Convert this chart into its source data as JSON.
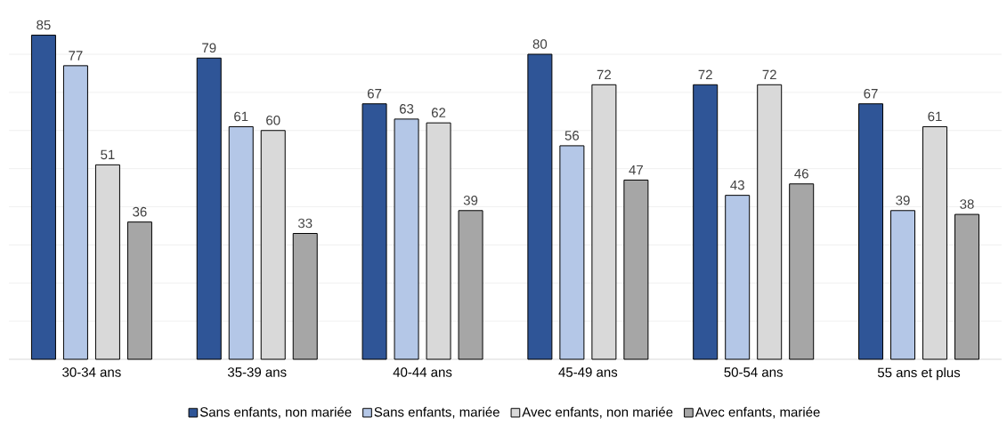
{
  "chart_data": {
    "type": "bar",
    "categories": [
      "30-34 ans",
      "35-39 ans",
      "40-44 ans",
      "45-49 ans",
      "50-54 ans",
      "55 ans et plus"
    ],
    "series": [
      {
        "name": "Sans enfants, non mariée",
        "color": "#2f5597",
        "values": [
          85,
          79,
          67,
          80,
          72,
          67
        ]
      },
      {
        "name": "Sans enfants, mariée",
        "color": "#b4c7e7",
        "values": [
          77,
          61,
          63,
          56,
          43,
          39
        ]
      },
      {
        "name": "Avec enfants, non mariée",
        "color": "#d9d9d9",
        "values": [
          51,
          60,
          62,
          72,
          72,
          61
        ]
      },
      {
        "name": "Avec enfants, mariée",
        "color": "#a6a6a6",
        "values": [
          36,
          33,
          39,
          47,
          46,
          38
        ]
      }
    ],
    "tick_labels": "x",
    "grid": "y",
    "legend": "bottom",
    "data_labels": true
  }
}
